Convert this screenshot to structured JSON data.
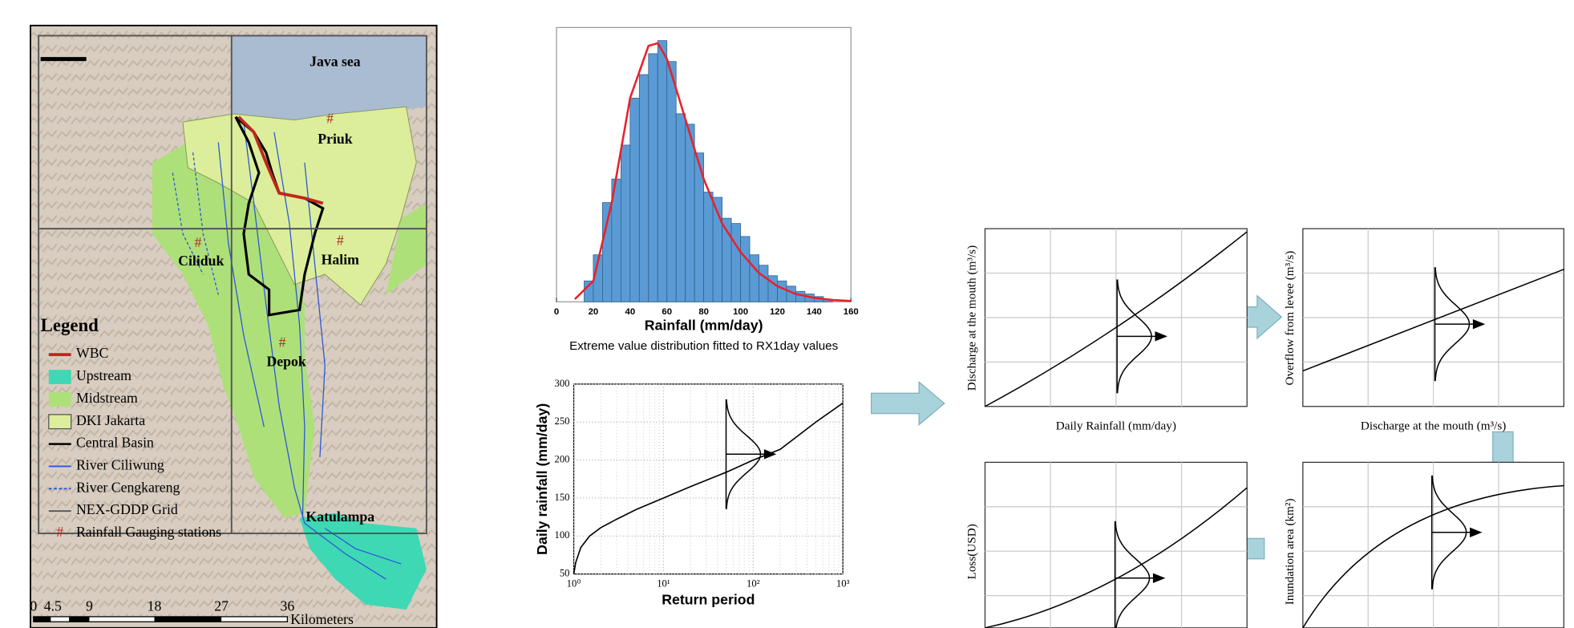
{
  "map": {
    "places": [
      "Java sea",
      "Priuk",
      "Ciliduk",
      "Halim",
      "Depok",
      "Katulampa"
    ],
    "legend_title": "Legend",
    "legend": [
      "WBC",
      "Upstream",
      "Midstream",
      "DKI Jakarta",
      "Central Basin",
      "River Ciliwung",
      "River Cengkareng",
      "NEX-GDDP Grid",
      "Rainfall Gauging stations"
    ],
    "gauge_symbol": "#",
    "scale_labels": [
      "0",
      "4.5",
      "9",
      "18",
      "27",
      "36"
    ],
    "scale_unit": "Kilometers"
  },
  "chart_data": [
    {
      "type": "histogram",
      "xlabel": "Rainfall (mm/day)",
      "caption": "Extreme value distribution fitted to RX1day values",
      "bins": [
        15,
        20,
        25,
        30,
        35,
        40,
        45,
        50,
        55,
        60,
        65,
        70,
        75,
        80,
        85,
        90,
        95,
        100,
        105,
        110,
        115,
        120,
        125,
        130,
        135,
        140,
        145,
        150
      ],
      "counts": [
        8,
        18,
        38,
        47,
        60,
        78,
        87,
        95,
        100,
        92,
        72,
        68,
        57,
        42,
        40,
        32,
        30,
        25,
        18,
        14,
        10,
        8,
        6,
        4,
        3,
        2,
        1
      ],
      "color": "#5b9bd5",
      "curve": {
        "color": "#e8212b",
        "x": [
          10,
          20,
          30,
          40,
          50,
          55,
          60,
          70,
          80,
          90,
          100,
          110,
          120,
          130,
          140,
          150,
          160
        ],
        "values": [
          1,
          8,
          38,
          78,
          98,
          99,
          93,
          70,
          47,
          30,
          19,
          11,
          6,
          3,
          1.5,
          0.7,
          0.3
        ]
      },
      "xlim": [
        0,
        160
      ],
      "xticks": [
        0,
        20,
        40,
        60,
        80,
        100,
        120,
        140,
        160
      ],
      "ylim": [
        0,
        105
      ]
    },
    {
      "type": "line",
      "xlabel": "Return period",
      "ylabel": "Daily rainfall (mm/day)",
      "x": [
        1,
        1.05,
        1.2,
        1.5,
        2,
        3,
        5,
        10,
        20,
        50,
        100,
        200,
        500,
        1000
      ],
      "values": [
        50,
        65,
        85,
        100,
        111,
        122,
        135,
        150,
        165,
        184,
        200,
        214,
        250,
        275
      ],
      "color": "#000000",
      "xlog": true,
      "grid": true,
      "xlim": [
        1,
        1000
      ],
      "xticks": [
        {
          "value": 1,
          "label": "10⁰"
        },
        {
          "value": 10,
          "label": "10¹"
        },
        {
          "value": 100,
          "label": "10²"
        },
        {
          "value": 1000,
          "label": "10³"
        }
      ],
      "ylim": [
        50,
        300
      ],
      "yticks": [
        50,
        100,
        150,
        200,
        250,
        300
      ]
    }
  ],
  "panels": [
    {
      "ylabel": "Discharge at the mouth (m³/s)",
      "xlabel": "Daily Rainfall (mm/day)"
    },
    {
      "ylabel": "Overflow from levee (m³/s)",
      "xlabel": "Discharge at the mouth (m³/s)"
    },
    {
      "ylabel": "Inundation area (km²)"
    },
    {
      "ylabel": "Loss(USD)"
    }
  ]
}
